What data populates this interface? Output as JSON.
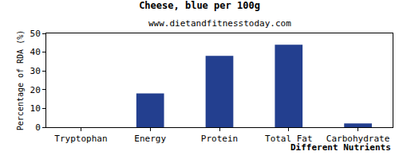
{
  "chart_data": {
    "type": "bar",
    "title": "Cheese, blue per 100g",
    "subtitle": "www.dietandfitnesstoday.com",
    "x_label": "Different Nutrients",
    "y_label": "Percentage of RDA (%)",
    "categories": [
      "Tryptophan",
      "Energy",
      "Protein",
      "Total Fat",
      "Carbohydrate"
    ],
    "values": [
      0,
      18,
      38,
      44,
      2
    ],
    "color": "#233f8f",
    "ylim": [
      0,
      50
    ],
    "yticks": [
      0,
      10,
      20,
      30,
      40,
      50
    ],
    "grid": false
  }
}
